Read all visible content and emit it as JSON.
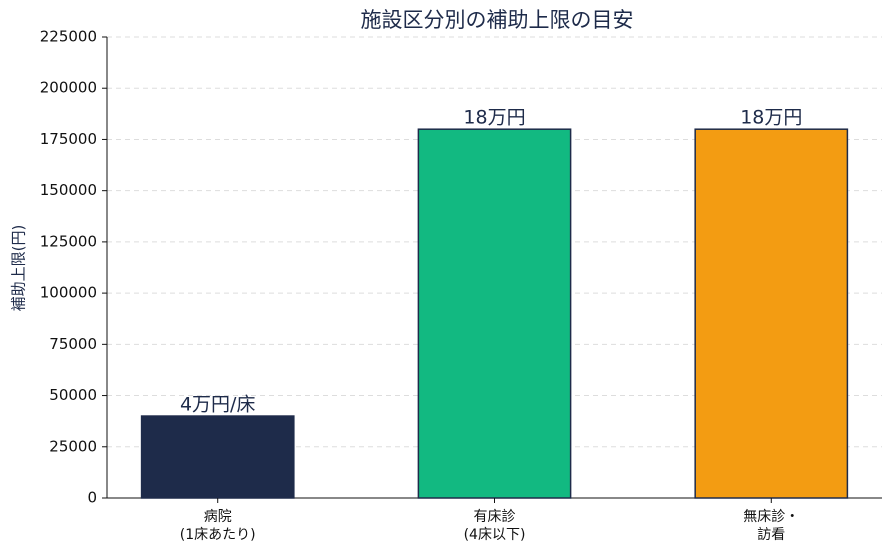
{
  "chart_data": {
    "type": "bar",
    "title": "施設区分別の補助上限の目安",
    "y_label": "補助上限(円)",
    "categories": [
      "病院\n(1床あたり)",
      "有床診\n(4床以下)",
      "無床診・\n訪看"
    ],
    "values": [
      40000,
      180000,
      180000
    ],
    "value_labels": [
      "4万円/床",
      "18万円",
      "18万円"
    ],
    "colors": [
      "#1e2b4a",
      "#12b981",
      "#f39c12"
    ],
    "ylim": [
      0,
      225000
    ],
    "yticks": [
      0,
      25000,
      50000,
      75000,
      100000,
      125000,
      150000,
      175000,
      200000,
      225000
    ],
    "grid": true
  }
}
